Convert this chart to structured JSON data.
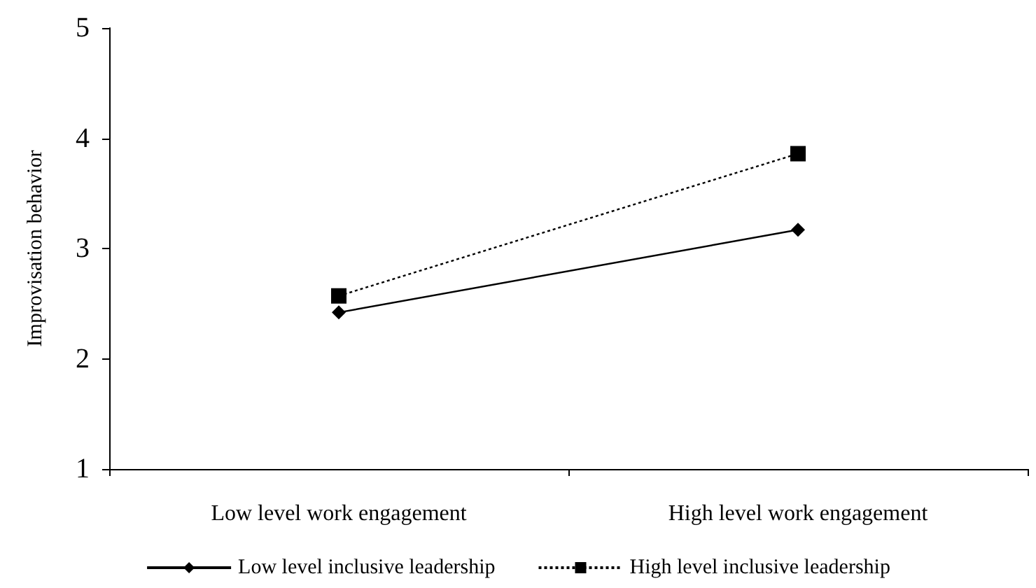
{
  "chart_data": {
    "type": "line",
    "ylabel": "Improvisation behavior",
    "categories": [
      "Low level work engagement",
      "High level work engagement"
    ],
    "series": [
      {
        "name": "Low level inclusive leadership",
        "color": "#000000",
        "values": [
          2.42,
          3.17
        ],
        "marker": "diamond",
        "line_style": "solid"
      },
      {
        "name": "High level inclusive leadership",
        "color": "#000000",
        "values": [
          2.57,
          3.86
        ],
        "marker": "square",
        "line_style": "dotted"
      }
    ],
    "ylim": [
      1,
      5
    ],
    "yticks": [
      1,
      2,
      3,
      4,
      5
    ],
    "grid": false,
    "legend": "bottom"
  }
}
